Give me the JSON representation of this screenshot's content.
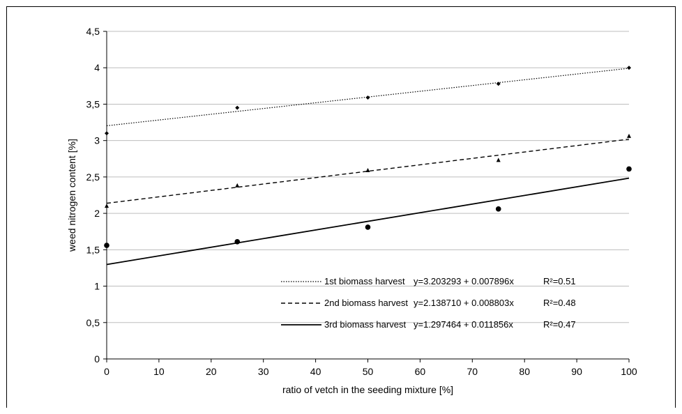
{
  "chart_data": {
    "type": "scatter",
    "xlabel": "ratio of vetch in the seeding mixture [%]",
    "ylabel": "weed nitrogen content [%]",
    "xlim": [
      0,
      100
    ],
    "ylim": [
      0,
      4.5
    ],
    "x_ticks": [
      "0",
      "10",
      "20",
      "30",
      "40",
      "50",
      "60",
      "70",
      "80",
      "90",
      "100"
    ],
    "y_ticks": [
      "0",
      "0,5",
      "1",
      "1,5",
      "2",
      "2,5",
      "3",
      "3,5",
      "4",
      "4,5"
    ],
    "grid": "horizontal",
    "legend_position": "bottom-right",
    "series": [
      {
        "name": "1st biomass harvest",
        "equation": "y=3.203293 + 0.007896x",
        "r2": "R²=0.51",
        "intercept": 3.203293,
        "slope": 0.007896,
        "line_style": "dotted",
        "marker": "diamond",
        "x": [
          0,
          25,
          50,
          75,
          100
        ],
        "y": [
          3.1,
          3.45,
          3.59,
          3.78,
          4.0
        ]
      },
      {
        "name": "2nd biomass harvest",
        "equation": "y=2.138710 + 0.008803x",
        "r2": "R²=0.48",
        "intercept": 2.13871,
        "slope": 0.008803,
        "line_style": "dashed",
        "marker": "triangle",
        "x": [
          0,
          25,
          50,
          75,
          100
        ],
        "y": [
          2.1,
          2.38,
          2.59,
          2.73,
          3.06
        ]
      },
      {
        "name": "3rd biomass harvest",
        "equation": "y=1.297464 + 0.011856x",
        "r2": "R²=0.47",
        "intercept": 1.297464,
        "slope": 0.011856,
        "line_style": "solid",
        "marker": "circle",
        "x": [
          0,
          25,
          50,
          75,
          100
        ],
        "y": [
          1.56,
          1.61,
          1.81,
          2.06,
          2.61
        ]
      }
    ]
  }
}
